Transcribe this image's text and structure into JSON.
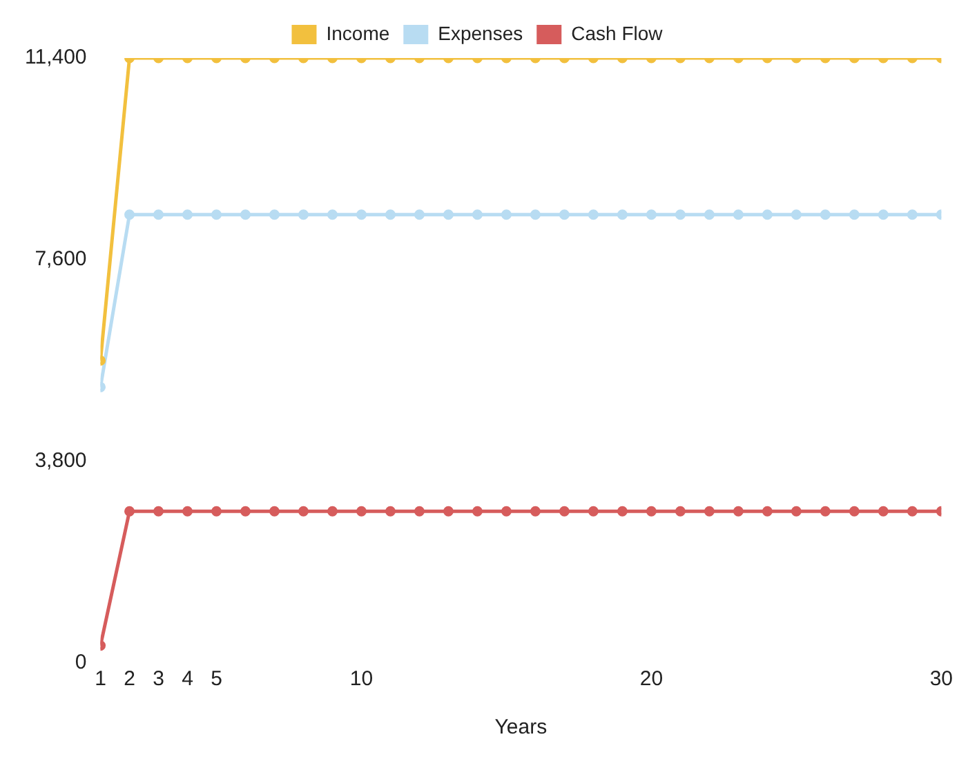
{
  "chart_data": {
    "type": "line",
    "xlabel": "Years",
    "x": [
      1,
      2,
      3,
      4,
      5,
      6,
      7,
      8,
      9,
      10,
      11,
      12,
      13,
      14,
      15,
      16,
      17,
      18,
      19,
      20,
      21,
      22,
      23,
      24,
      25,
      26,
      27,
      28,
      29,
      30
    ],
    "series": [
      {
        "name": "Income",
        "color": "#f2c03e",
        "values": [
          5700,
          11400,
          11400,
          11400,
          11400,
          11400,
          11400,
          11400,
          11400,
          11400,
          11400,
          11400,
          11400,
          11400,
          11400,
          11400,
          11400,
          11400,
          11400,
          11400,
          11400,
          11400,
          11400,
          11400,
          11400,
          11400,
          11400,
          11400,
          11400,
          11400
        ]
      },
      {
        "name": "Expenses",
        "color": "#b8dcf2",
        "values": [
          5200,
          8450,
          8450,
          8450,
          8450,
          8450,
          8450,
          8450,
          8450,
          8450,
          8450,
          8450,
          8450,
          8450,
          8450,
          8450,
          8450,
          8450,
          8450,
          8450,
          8450,
          8450,
          8450,
          8450,
          8450,
          8450,
          8450,
          8450,
          8450,
          8450
        ]
      },
      {
        "name": "Cash Flow",
        "color": "#d65c5c",
        "values": [
          330,
          2860,
          2860,
          2860,
          2860,
          2860,
          2860,
          2860,
          2860,
          2860,
          2860,
          2860,
          2860,
          2860,
          2860,
          2860,
          2860,
          2860,
          2860,
          2860,
          2860,
          2860,
          2860,
          2860,
          2860,
          2860,
          2860,
          2860,
          2860,
          2860
        ]
      }
    ],
    "xlim": [
      1,
      30
    ],
    "xticks": [
      1,
      2,
      3,
      4,
      5,
      10,
      20,
      30
    ],
    "ylim": [
      0,
      11400
    ],
    "yticks": [
      0,
      {
        "value": 3800,
        "label": "3,800"
      },
      {
        "value": 7600,
        "label": "7,600"
      },
      {
        "value": 11400,
        "label": "11,400"
      }
    ],
    "grid": false,
    "legend": "top",
    "marker": "circle",
    "line_style": "solid"
  }
}
